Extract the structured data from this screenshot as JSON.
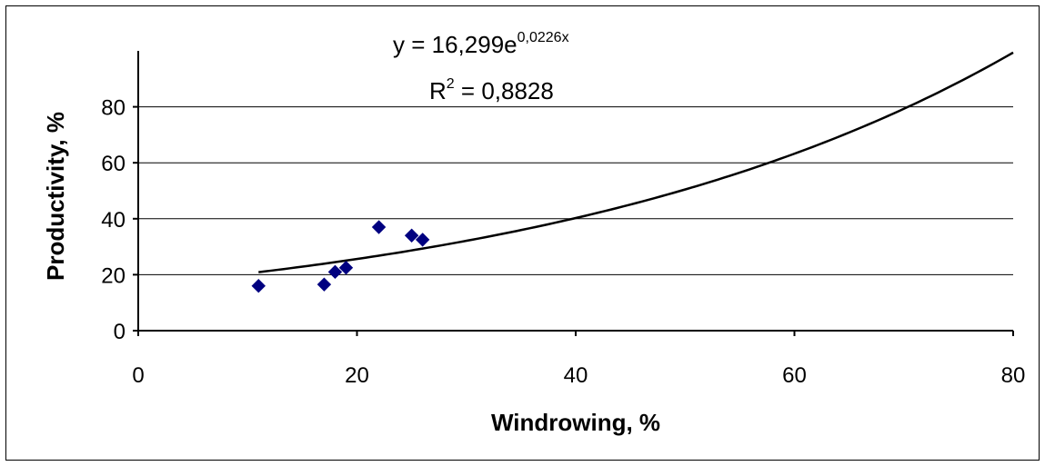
{
  "chart_data": {
    "type": "scatter",
    "xlabel": "Windrowing, %",
    "ylabel": "Productivity, %",
    "xlim": [
      0,
      80
    ],
    "ylim": [
      0,
      100
    ],
    "x_ticks": [
      0,
      20,
      40,
      60,
      80
    ],
    "y_ticks": [
      0,
      20,
      40,
      60,
      80
    ],
    "grid": "horizontal",
    "series": [
      {
        "points": [
          [
            11,
            16
          ],
          [
            17,
            16.5
          ],
          [
            18,
            21
          ],
          [
            19,
            22.5
          ],
          [
            22,
            37
          ],
          [
            25,
            34
          ],
          [
            26,
            32.5
          ]
        ],
        "color": "#000080",
        "marker": "diamond"
      }
    ],
    "trendline": {
      "type": "exponential",
      "a": 16.299,
      "b": 0.0226,
      "x_start": 11,
      "x_end": 80,
      "equation_text": {
        "prefix": "y = 16,299e",
        "exponent": "0,0226x"
      },
      "r2_text": {
        "base": "R",
        "sup": "2",
        "suffix": " = 0,8828"
      },
      "color": "#000000"
    }
  }
}
